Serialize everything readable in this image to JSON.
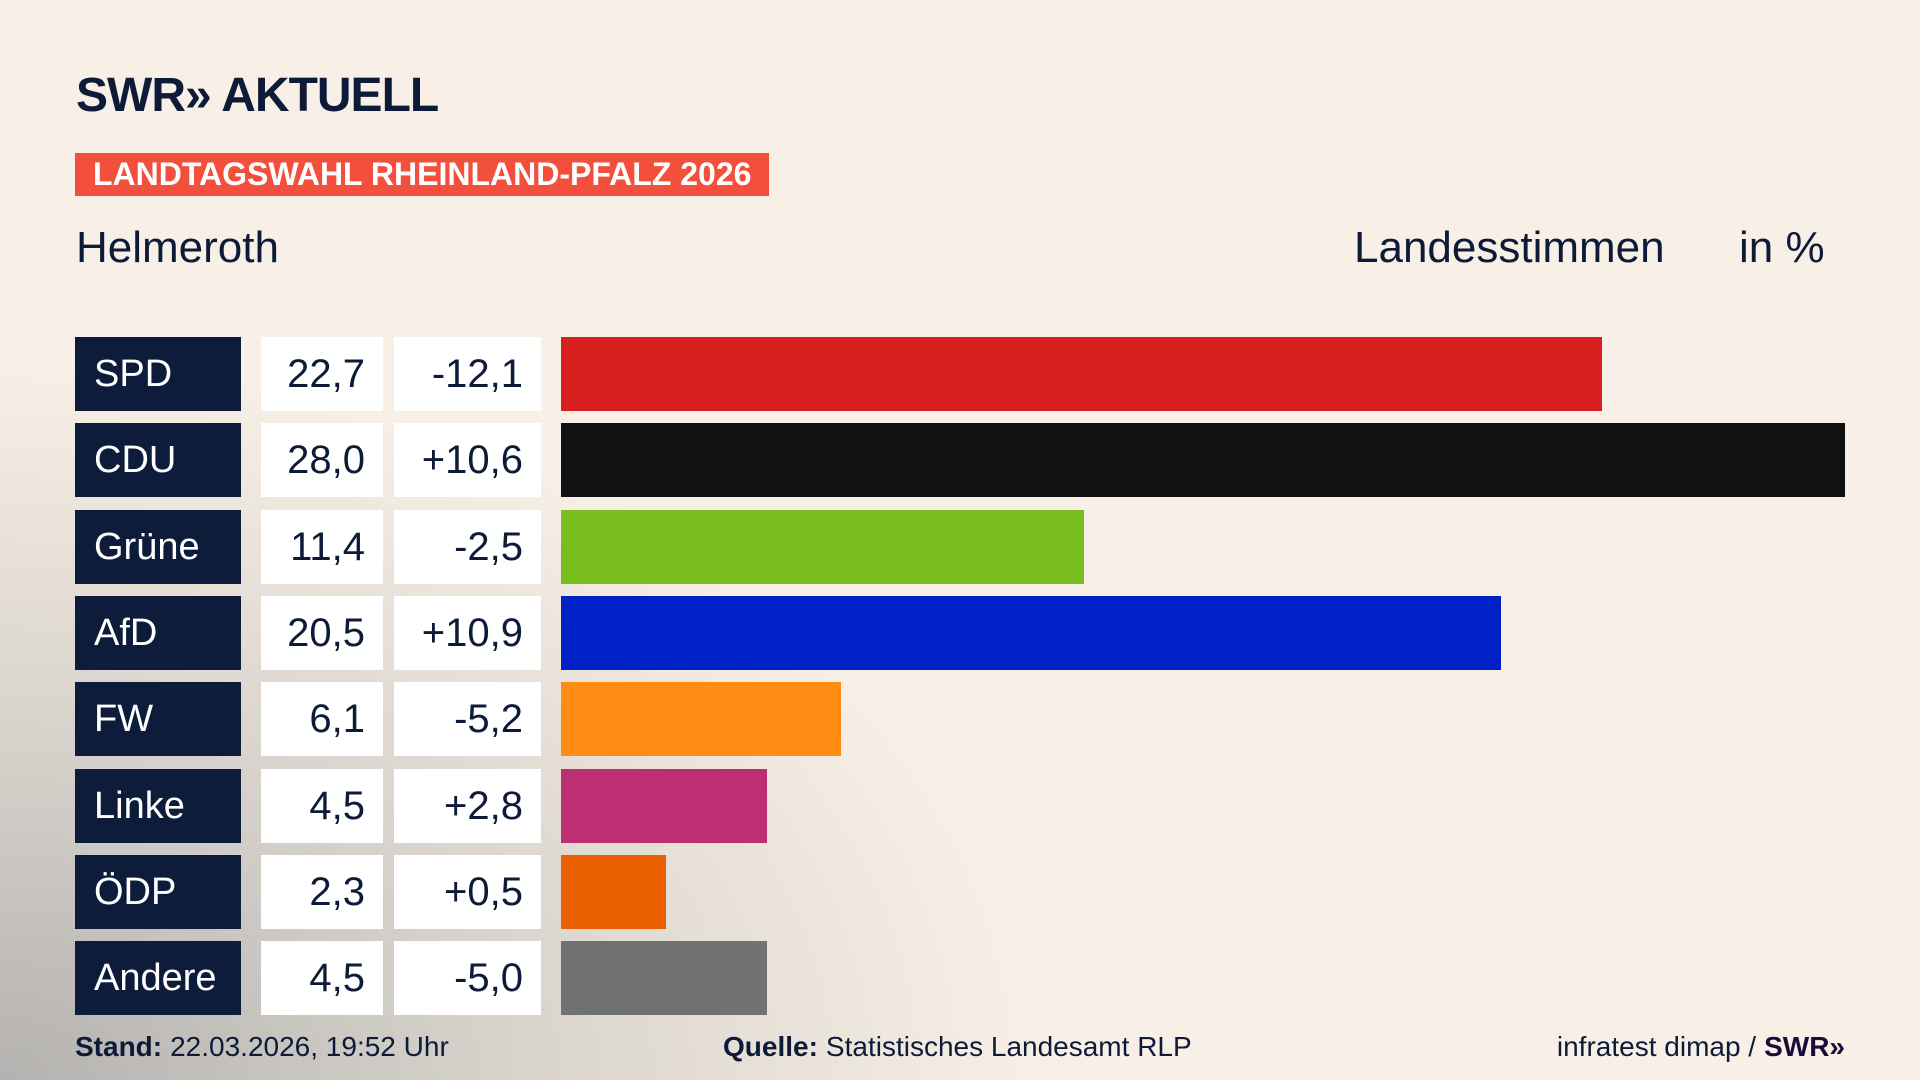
{
  "header": {
    "logo": "SWR» AKTUELL",
    "band": "LANDTAGSWAHL RHEINLAND-PFALZ 2026",
    "place": "Helmeroth",
    "measure": "Landesstimmen",
    "unit": "in %"
  },
  "chart_data": {
    "type": "bar",
    "orientation": "horizontal",
    "xlim": [
      0,
      28.0
    ],
    "categories": [
      "SPD",
      "CDU",
      "Grüne",
      "AfD",
      "FW",
      "Linke",
      "ÖDP",
      "Andere"
    ],
    "values": [
      "22,7",
      "28,0",
      "11,4",
      "20,5",
      "6,1",
      "4,5",
      "2,3",
      "4,5"
    ],
    "numeric_values": [
      22.7,
      28.0,
      11.4,
      20.5,
      6.1,
      4.5,
      2.3,
      4.5
    ],
    "changes": [
      "-12,1",
      "+10,6",
      "-2,5",
      "+10,9",
      "-5,2",
      "+2,8",
      "+0,5",
      "-5,0"
    ],
    "colors": [
      "#d71f1f",
      "#111111",
      "#78be1e",
      "#0020c8",
      "#ff8c14",
      "#bc2f73",
      "#ea6000",
      "#707173"
    ]
  },
  "footer": {
    "stand_label": "Stand:",
    "stand_value": "22.03.2026, 19:52 Uhr",
    "source_label": "Quelle:",
    "source_value": "Statistisches Landesamt RLP",
    "credit": "infratest dimap /",
    "credit_logo": "SWR»"
  }
}
